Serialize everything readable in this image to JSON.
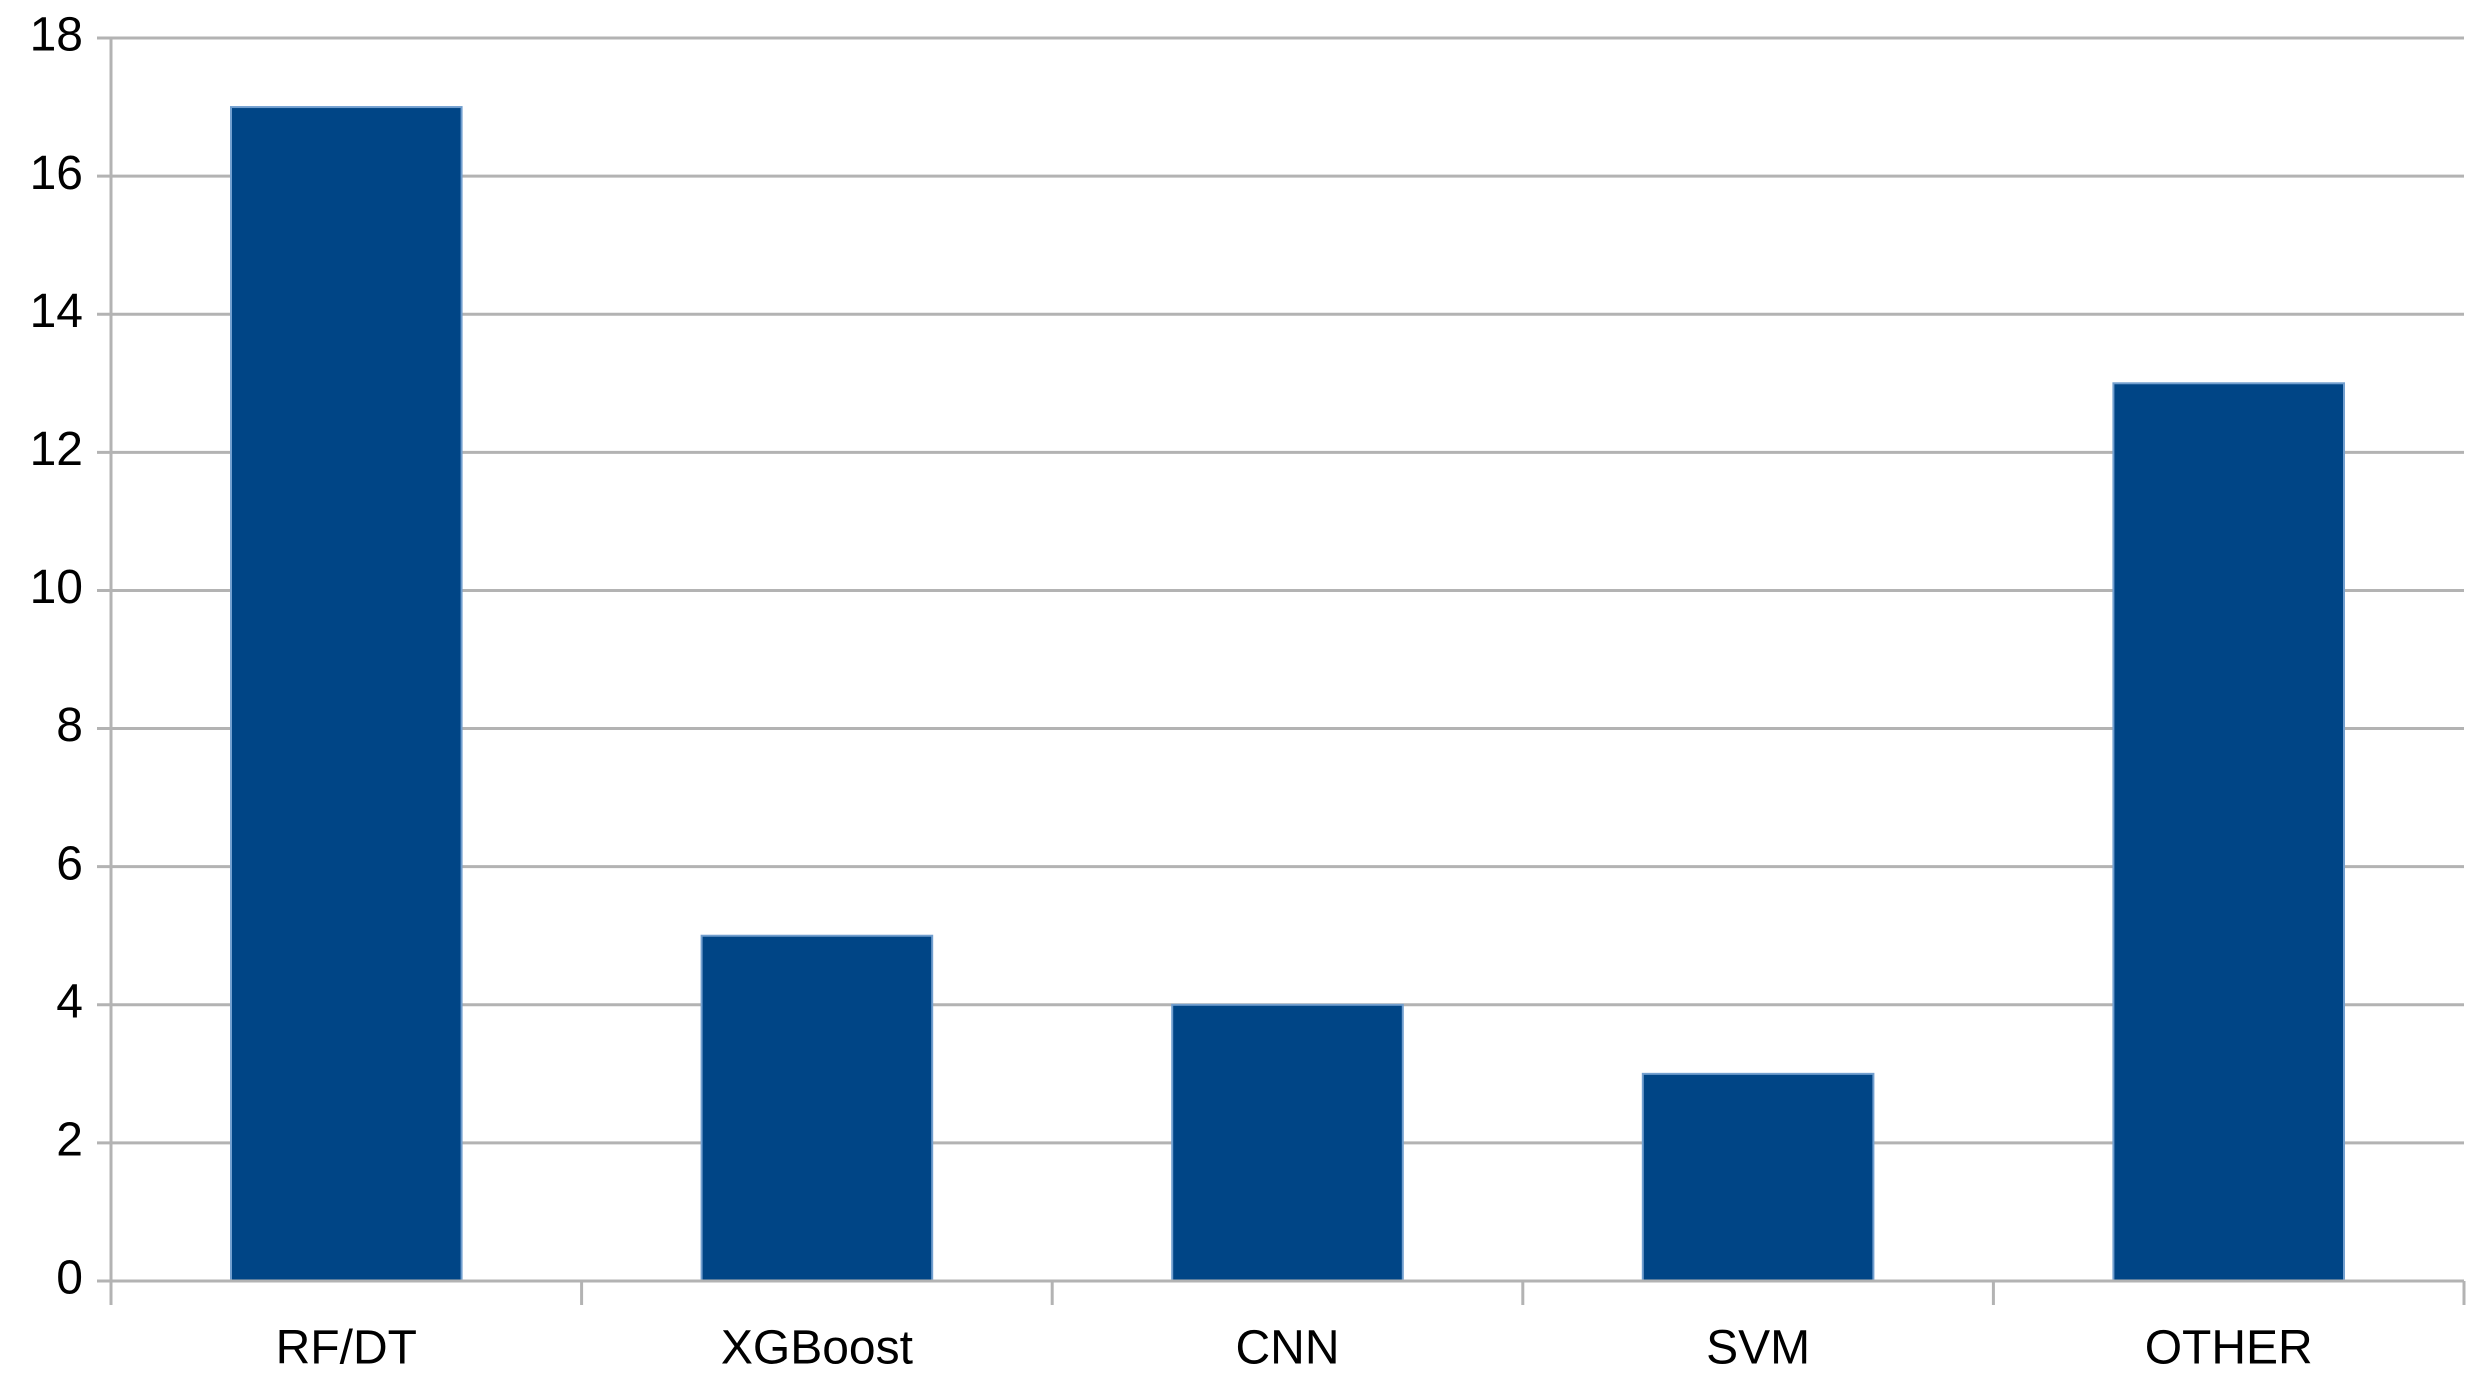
{
  "chart_data": {
    "type": "bar",
    "categories": [
      "RF/DT",
      "XGBoost",
      "CNN",
      "SVM",
      "OTHER"
    ],
    "values": [
      17,
      5,
      4,
      3,
      13
    ],
    "color": "#004586",
    "ylim": [
      0,
      18
    ],
    "yticks": [
      0,
      2,
      4,
      6,
      8,
      10,
      12,
      14,
      16,
      18
    ],
    "grid": true
  }
}
